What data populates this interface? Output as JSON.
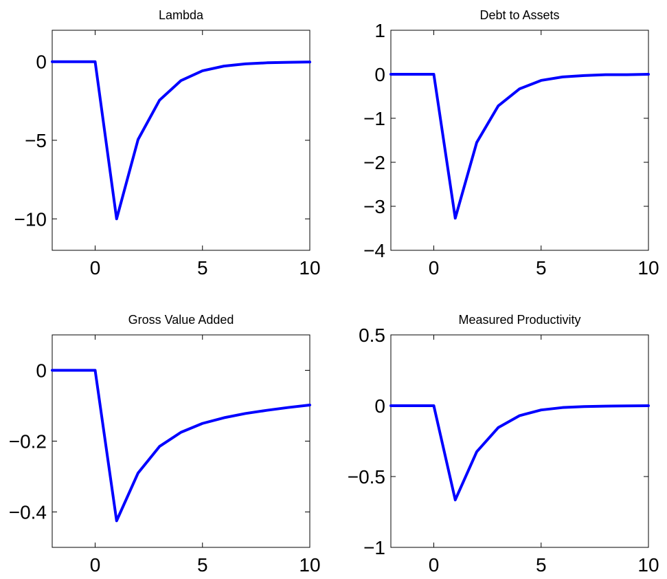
{
  "colors": {
    "series": "#0000ff",
    "axes": "#000000",
    "background": "#ffffff"
  },
  "chart_data": [
    {
      "type": "line",
      "title": "Lambda",
      "xlim": [
        -2,
        10
      ],
      "ylim": [
        -12,
        2
      ],
      "xticks": [
        {
          "value": 0,
          "label": "0"
        },
        {
          "value": 5,
          "label": "5"
        },
        {
          "value": 10,
          "label": "10"
        }
      ],
      "yticks": [
        {
          "value": 0,
          "label": "0"
        },
        {
          "value": -5,
          "label": "−5"
        },
        {
          "value": -10,
          "label": "−10"
        }
      ],
      "grid": false,
      "series": [
        {
          "x": [
            -2,
            -1,
            0,
            1,
            2,
            3,
            4,
            5,
            6,
            7,
            8,
            9,
            10
          ],
          "y": [
            0,
            0,
            0,
            -10.0,
            -4.95,
            -2.45,
            -1.2,
            -0.58,
            -0.28,
            -0.14,
            -0.07,
            -0.04,
            -0.02
          ]
        }
      ]
    },
    {
      "type": "line",
      "title": "Debt to Assets",
      "xlim": [
        -2,
        10
      ],
      "ylim": [
        -4,
        1
      ],
      "xticks": [
        {
          "value": 0,
          "label": "0"
        },
        {
          "value": 5,
          "label": "5"
        },
        {
          "value": 10,
          "label": "10"
        }
      ],
      "yticks": [
        {
          "value": 1,
          "label": "1"
        },
        {
          "value": 0,
          "label": "0"
        },
        {
          "value": -1,
          "label": "−1"
        },
        {
          "value": -2,
          "label": "−2"
        },
        {
          "value": -3,
          "label": "−3"
        },
        {
          "value": -4,
          "label": "−4"
        }
      ],
      "grid": false,
      "series": [
        {
          "x": [
            -2,
            -1,
            0,
            1,
            2,
            3,
            4,
            5,
            6,
            7,
            8,
            9,
            10
          ],
          "y": [
            0,
            0,
            0,
            -3.27,
            -1.55,
            -0.72,
            -0.33,
            -0.14,
            -0.06,
            -0.03,
            -0.01,
            -0.01,
            0
          ]
        }
      ]
    },
    {
      "type": "line",
      "title": "Gross Value Added",
      "xlim": [
        -2,
        10
      ],
      "ylim": [
        -0.5,
        0.1
      ],
      "xticks": [
        {
          "value": 0,
          "label": "0"
        },
        {
          "value": 5,
          "label": "5"
        },
        {
          "value": 10,
          "label": "10"
        }
      ],
      "yticks": [
        {
          "value": 0,
          "label": "0"
        },
        {
          "value": -0.2,
          "label": "−0.2"
        },
        {
          "value": -0.4,
          "label": "−0.4"
        }
      ],
      "grid": false,
      "series": [
        {
          "x": [
            -2,
            -1,
            0,
            1,
            2,
            3,
            4,
            5,
            6,
            7,
            8,
            9,
            10
          ],
          "y": [
            0,
            0,
            0,
            -0.425,
            -0.29,
            -0.215,
            -0.175,
            -0.15,
            -0.134,
            -0.122,
            -0.113,
            -0.105,
            -0.098
          ]
        }
      ]
    },
    {
      "type": "line",
      "title": "Measured Productivity",
      "xlim": [
        -2,
        10
      ],
      "ylim": [
        -1,
        0.5
      ],
      "xticks": [
        {
          "value": 0,
          "label": "0"
        },
        {
          "value": 5,
          "label": "5"
        },
        {
          "value": 10,
          "label": "10"
        }
      ],
      "yticks": [
        {
          "value": 0.5,
          "label": "0.5"
        },
        {
          "value": 0,
          "label": "0"
        },
        {
          "value": -0.5,
          "label": "−0.5"
        },
        {
          "value": -1,
          "label": "−1"
        }
      ],
      "grid": false,
      "series": [
        {
          "x": [
            -2,
            -1,
            0,
            1,
            2,
            3,
            4,
            5,
            6,
            7,
            8,
            9,
            10
          ],
          "y": [
            0,
            0,
            0,
            -0.665,
            -0.325,
            -0.155,
            -0.07,
            -0.03,
            -0.013,
            -0.006,
            -0.003,
            -0.001,
            0
          ]
        }
      ]
    }
  ]
}
